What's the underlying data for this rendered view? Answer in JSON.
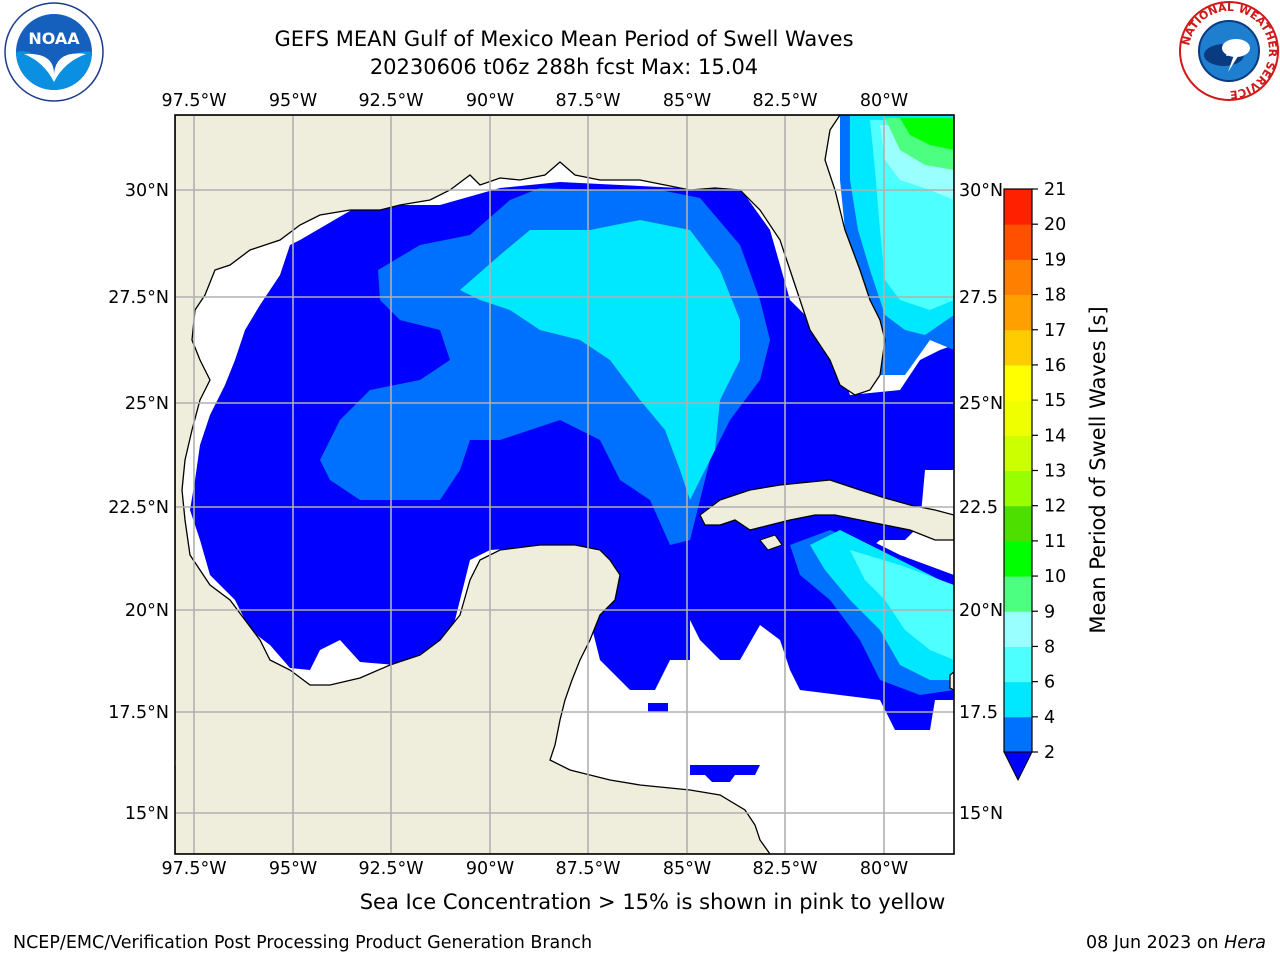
{
  "title": {
    "line1": "GEFS MEAN Gulf of Mexico Mean Period of Swell Waves",
    "line2": "20230606 t06z 288h fcst   Max: 15.04"
  },
  "map": {
    "lon_ticks": [
      "97.5°W",
      "95°W",
      "92.5°W",
      "90°W",
      "87.5°W",
      "85°W",
      "82.5°W",
      "80°W"
    ],
    "lat_ticks": [
      "30°N",
      "27.5°N",
      "25°N",
      "22.5°N",
      "20°N",
      "17.5°N",
      "15°N"
    ],
    "lat_ticks_right": [
      "30°N",
      "27.5",
      "25°N",
      "22.5",
      "20°N",
      "17.5",
      "15°N"
    ],
    "colors": {
      "land": "#efeddc",
      "coast": "#000000",
      "grid": "#b0b0b0",
      "no_data_sea": "#ffffff"
    }
  },
  "colorbar": {
    "label": "Mean Period of Swell Waves [s]",
    "ticks": [
      "2",
      "4",
      "6",
      "8",
      "9",
      "10",
      "11",
      "12",
      "13",
      "14",
      "15",
      "16",
      "17",
      "18",
      "19",
      "20",
      "21"
    ],
    "colors": [
      "#0070ff",
      "#00e8ff",
      "#4dffff",
      "#99ffff",
      "#4dff80",
      "#00ff00",
      "#4ddf00",
      "#99ff00",
      "#ccff00",
      "#f0ff00",
      "#ffff00",
      "#ffcc00",
      "#ffa000",
      "#ff8000",
      "#ff5000",
      "#ff2000"
    ],
    "extend_color": "#0000ff"
  },
  "logos": {
    "noaa_icon": "noaa-logo",
    "noaa_text": "NOAA",
    "nws_icon": "nws-logo",
    "nws_text": "NATIONAL WEATHER SERVICE"
  },
  "footer": {
    "note": "Sea Ice Concentration > 15% is shown in pink to yellow",
    "left": "NCEP/EMC/Verification Post Processing Product Generation Branch",
    "right_date": "08 Jun 2023 on ",
    "right_host": "Hera"
  }
}
